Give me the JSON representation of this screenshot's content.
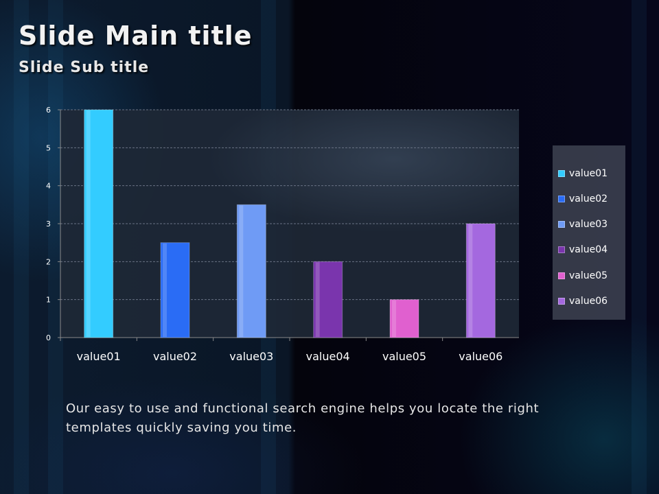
{
  "slide": {
    "title": "Slide Main title",
    "subtitle": "Slide Sub title",
    "body": "Our easy to use and functional search engine helps you locate the right templates quickly saving you time."
  },
  "chart_data": {
    "type": "bar",
    "categories": [
      "value01",
      "value02",
      "value03",
      "value04",
      "value05",
      "value06"
    ],
    "values": [
      6,
      2.5,
      3.5,
      2,
      1,
      3
    ],
    "colors": [
      "#33ccff",
      "#2a6cf5",
      "#6f9bf5",
      "#7a35ad",
      "#e060cf",
      "#a468df"
    ],
    "ylim": [
      0,
      6
    ],
    "yticks": [
      0,
      1,
      2,
      3,
      4,
      5,
      6
    ],
    "grid": true,
    "legend": "right",
    "title": "",
    "xlabel": "",
    "ylabel": ""
  }
}
